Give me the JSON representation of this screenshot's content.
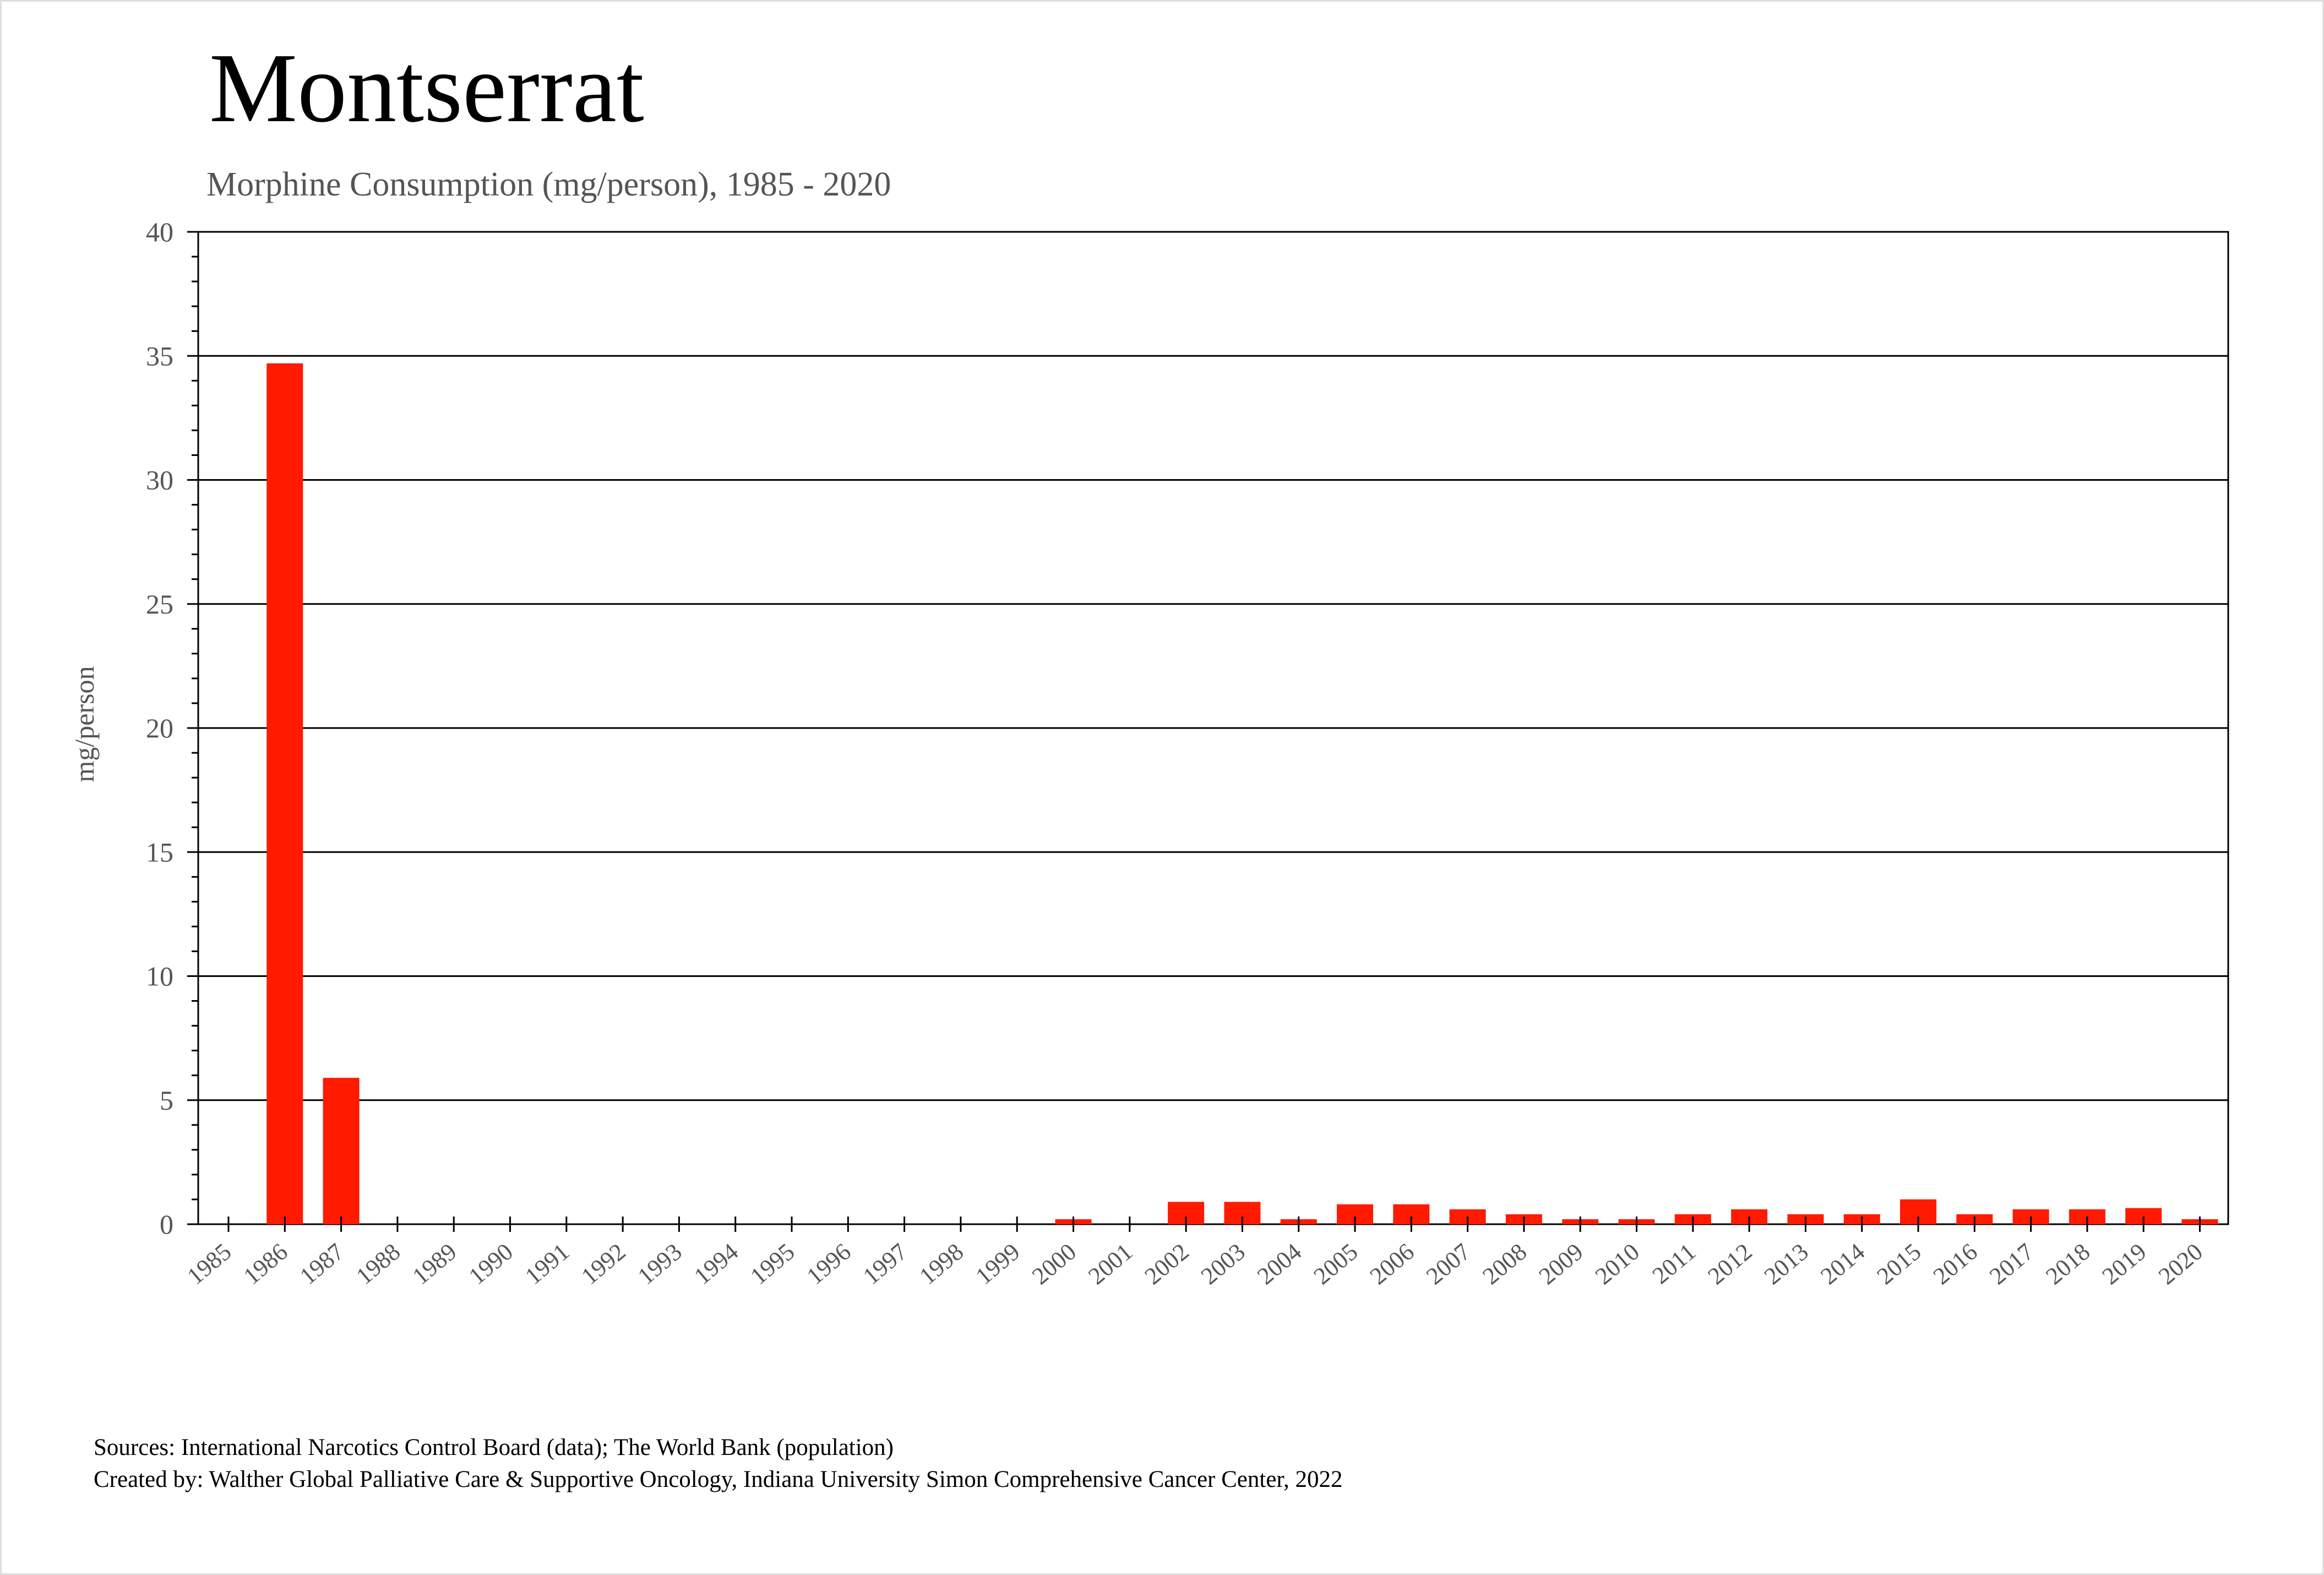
{
  "title": "Montserrat",
  "subtitle": "Morphine Consumption (mg/person), 1985 - 2020",
  "footer": {
    "sources": "Sources: International Narcotics Control Board (data); The World Bank (population)",
    "created_by": "Created by: Walther  Global Palliative Care & Supportive Oncology, Indiana University Simon Comprehensive Cancer Center, 2022"
  },
  "colors": {
    "bar": "#ff1a00",
    "grid": "#000000",
    "text": "#555555"
  },
  "chart_data": {
    "type": "bar",
    "title": "Montserrat",
    "subtitle": "Morphine Consumption (mg/person), 1985 - 2020",
    "xlabel": "",
    "ylabel": "mg/person",
    "ylim": [
      0,
      40
    ],
    "yticks": [
      0,
      5,
      10,
      15,
      20,
      25,
      30,
      35,
      40
    ],
    "grid": true,
    "categories": [
      "1985",
      "1986",
      "1987",
      "1988",
      "1989",
      "1990",
      "1991",
      "1992",
      "1993",
      "1994",
      "1995",
      "1996",
      "1997",
      "1998",
      "1999",
      "2000",
      "2001",
      "2002",
      "2003",
      "2004",
      "2005",
      "2006",
      "2007",
      "2008",
      "2009",
      "2010",
      "2011",
      "2012",
      "2013",
      "2014",
      "2015",
      "2016",
      "2017",
      "2018",
      "2019",
      "2020"
    ],
    "values": [
      0,
      34.7,
      5.9,
      0,
      0,
      0,
      0,
      0,
      0,
      0,
      0,
      0,
      0,
      0,
      0,
      0.2,
      0,
      0.9,
      0.9,
      0.2,
      0.8,
      0.8,
      0.6,
      0.4,
      0.2,
      0.2,
      0.4,
      0.6,
      0.4,
      0.4,
      1.0,
      0.4,
      0.6,
      0.6,
      0.65,
      0.2
    ]
  }
}
